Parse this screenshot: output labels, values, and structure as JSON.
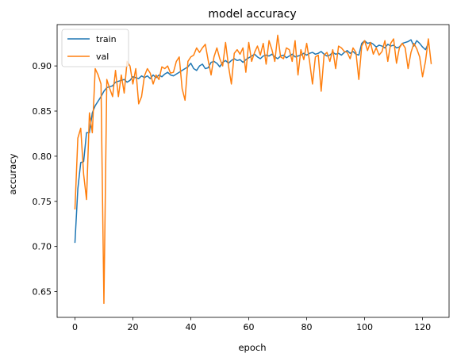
{
  "chart_data": {
    "type": "line",
    "title": "model accuracy",
    "xlabel": "epoch",
    "ylabel": "accuracy",
    "xlim": [
      -6.15,
      129.15
    ],
    "ylim": [
      0.6215,
      0.9458
    ],
    "xticks": [
      0,
      20,
      40,
      60,
      80,
      100,
      120
    ],
    "yticks": [
      0.65,
      0.7,
      0.75,
      0.8,
      0.85,
      0.9
    ],
    "ytick_labels": [
      "0.65",
      "0.70",
      "0.75",
      "0.80",
      "0.85",
      "0.90"
    ],
    "grid": false,
    "legend_position": "upper left",
    "series": [
      {
        "name": "train",
        "color": "#1f77b4",
        "values": [
          0.704,
          0.764,
          0.793,
          0.794,
          0.826,
          0.826,
          0.848,
          0.856,
          0.861,
          0.866,
          0.872,
          0.876,
          0.877,
          0.878,
          0.882,
          0.883,
          0.884,
          0.885,
          0.882,
          0.884,
          0.888,
          0.887,
          0.886,
          0.889,
          0.887,
          0.889,
          0.886,
          0.89,
          0.887,
          0.89,
          0.888,
          0.891,
          0.893,
          0.89,
          0.889,
          0.891,
          0.893,
          0.895,
          0.897,
          0.899,
          0.903,
          0.897,
          0.895,
          0.9,
          0.902,
          0.897,
          0.898,
          0.904,
          0.905,
          0.903,
          0.899,
          0.904,
          0.906,
          0.903,
          0.906,
          0.908,
          0.906,
          0.907,
          0.904,
          0.907,
          0.909,
          0.911,
          0.913,
          0.91,
          0.908,
          0.911,
          0.912,
          0.911,
          0.913,
          0.91,
          0.908,
          0.911,
          0.912,
          0.909,
          0.911,
          0.913,
          0.91,
          0.911,
          0.912,
          0.914,
          0.912,
          0.914,
          0.915,
          0.913,
          0.914,
          0.916,
          0.913,
          0.911,
          0.912,
          0.915,
          0.913,
          0.914,
          0.912,
          0.915,
          0.917,
          0.914,
          0.916,
          0.913,
          0.912,
          0.925,
          0.928,
          0.925,
          0.926,
          0.924,
          0.921,
          0.923,
          0.922,
          0.92,
          0.924,
          0.922,
          0.923,
          0.92,
          0.921,
          0.925,
          0.926,
          0.927,
          0.929,
          0.922,
          0.928,
          0.925,
          0.921,
          0.918,
          0.925
        ]
      },
      {
        "name": "val",
        "color": "#ff7f0e",
        "values": [
          0.741,
          0.82,
          0.831,
          0.78,
          0.752,
          0.848,
          0.826,
          0.897,
          0.89,
          0.88,
          0.637,
          0.885,
          0.875,
          0.866,
          0.895,
          0.866,
          0.89,
          0.87,
          0.905,
          0.9,
          0.88,
          0.897,
          0.858,
          0.866,
          0.889,
          0.897,
          0.892,
          0.88,
          0.89,
          0.885,
          0.899,
          0.897,
          0.9,
          0.892,
          0.893,
          0.905,
          0.91,
          0.875,
          0.862,
          0.905,
          0.91,
          0.912,
          0.92,
          0.915,
          0.92,
          0.924,
          0.906,
          0.89,
          0.91,
          0.92,
          0.908,
          0.9,
          0.926,
          0.9,
          0.88,
          0.914,
          0.918,
          0.913,
          0.92,
          0.893,
          0.926,
          0.905,
          0.915,
          0.922,
          0.912,
          0.925,
          0.902,
          0.928,
          0.918,
          0.905,
          0.934,
          0.91,
          0.908,
          0.92,
          0.918,
          0.905,
          0.928,
          0.89,
          0.918,
          0.907,
          0.925,
          0.905,
          0.88,
          0.91,
          0.912,
          0.872,
          0.912,
          0.915,
          0.905,
          0.918,
          0.897,
          0.922,
          0.92,
          0.916,
          0.915,
          0.908,
          0.92,
          0.915,
          0.885,
          0.922,
          0.928,
          0.917,
          0.926,
          0.913,
          0.92,
          0.912,
          0.916,
          0.928,
          0.905,
          0.925,
          0.93,
          0.903,
          0.92,
          0.925,
          0.92,
          0.897,
          0.915,
          0.925,
          0.919,
          0.91,
          0.888,
          0.905,
          0.93,
          0.902
        ]
      }
    ]
  }
}
